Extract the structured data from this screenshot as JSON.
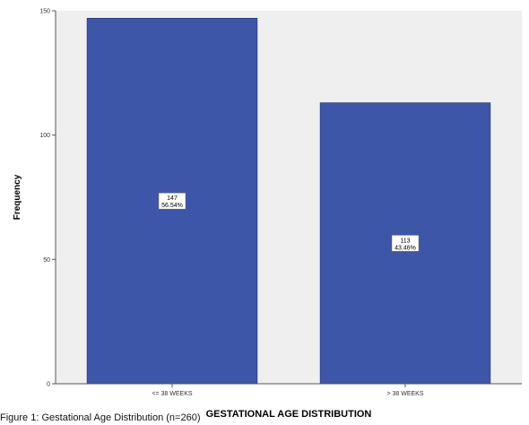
{
  "chart_data": {
    "type": "bar",
    "categories": [
      "<= 38 WEEKS",
      "> 38 WEEKS"
    ],
    "values": [
      147,
      113
    ],
    "data_labels": [
      {
        "count": "147",
        "percent": "56.54%"
      },
      {
        "count": "113",
        "percent": "43.46%"
      }
    ],
    "xlabel": "GESTATIONAL AGE DISTRIBUTION",
    "ylabel": "Frequency",
    "ylim": [
      0,
      150
    ],
    "yticks": [
      0,
      50,
      100,
      150
    ],
    "grid": false,
    "legend": "none"
  },
  "caption": "Figure 1: Gestational Age Distribution (n=260)",
  "colors": {
    "bar": "#3d56a7",
    "plot_background": "#efefef",
    "bar_stroke": "#1f2f66",
    "label_box": "#ffffff"
  }
}
